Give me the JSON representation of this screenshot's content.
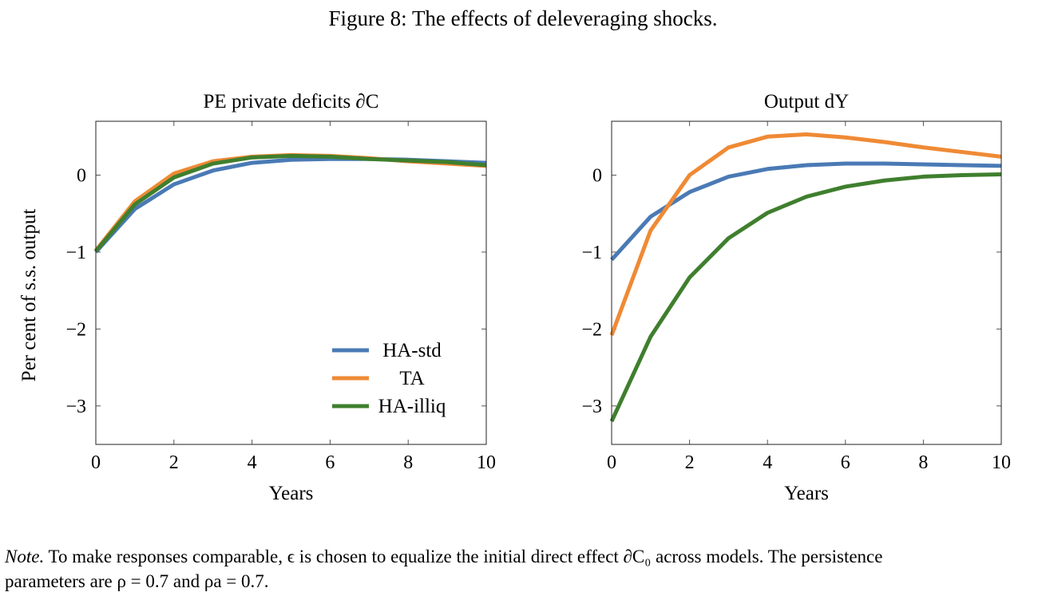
{
  "figure_title": "Figure 8: The effects of deleveraging shocks.",
  "y_axis_label": "Per cent of s.s. output",
  "note": {
    "lead": "Note.",
    "line1": " To make responses comparable, ϵ is chosen to equalize the initial direct effect ∂C₀ across models. The persistence",
    "line2": "parameters are ρ = 0.7 and ρa = 0.7."
  },
  "colors": {
    "HA-std": "#4a7ab5",
    "TA": "#ef8a35",
    "HA-illiq": "#3f7f2e"
  },
  "chart_data": [
    {
      "type": "line",
      "title": "PE private deficits ∂C",
      "xlabel": "Years",
      "ylabel": "Per cent of s.s. output",
      "xlim": [
        0,
        10
      ],
      "ylim": [
        -3.5,
        0.7
      ],
      "xticks": [
        0,
        2,
        4,
        6,
        8,
        10
      ],
      "yticks": [
        -3,
        -2,
        -1,
        0
      ],
      "legend": "lower-right",
      "x": [
        0,
        1,
        2,
        3,
        4,
        5,
        6,
        7,
        8,
        9,
        10
      ],
      "series": [
        {
          "name": "HA-std",
          "values": [
            -1.0,
            -0.44,
            -0.12,
            0.06,
            0.16,
            0.2,
            0.21,
            0.21,
            0.2,
            0.18,
            0.16
          ]
        },
        {
          "name": "TA",
          "values": [
            -0.98,
            -0.34,
            0.02,
            0.18,
            0.24,
            0.26,
            0.25,
            0.22,
            0.18,
            0.15,
            0.12
          ]
        },
        {
          "name": "HA-illiq",
          "values": [
            -0.99,
            -0.38,
            -0.03,
            0.15,
            0.23,
            0.25,
            0.24,
            0.21,
            0.19,
            0.17,
            0.13
          ]
        }
      ]
    },
    {
      "type": "line",
      "title": "Output dY",
      "xlabel": "Years",
      "ylabel": "",
      "xlim": [
        0,
        10
      ],
      "ylim": [
        -3.5,
        0.7
      ],
      "xticks": [
        0,
        2,
        4,
        6,
        8,
        10
      ],
      "yticks": [
        -3,
        -2,
        -1,
        0
      ],
      "x": [
        0,
        1,
        2,
        3,
        4,
        5,
        6,
        7,
        8,
        9,
        10
      ],
      "series": [
        {
          "name": "HA-std",
          "values": [
            -1.1,
            -0.54,
            -0.22,
            -0.02,
            0.08,
            0.13,
            0.15,
            0.15,
            0.14,
            0.13,
            0.12
          ]
        },
        {
          "name": "TA",
          "values": [
            -2.08,
            -0.72,
            0.0,
            0.36,
            0.5,
            0.53,
            0.49,
            0.43,
            0.36,
            0.3,
            0.24
          ]
        },
        {
          "name": "HA-illiq",
          "values": [
            -3.2,
            -2.1,
            -1.33,
            -0.82,
            -0.49,
            -0.28,
            -0.15,
            -0.07,
            -0.02,
            0.0,
            0.01
          ]
        }
      ]
    }
  ]
}
